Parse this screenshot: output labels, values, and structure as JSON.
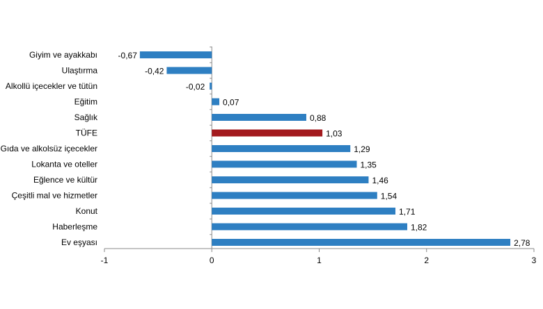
{
  "chart_data": {
    "type": "bar",
    "orientation": "horizontal",
    "categories": [
      "Giyim ve ayakkabı",
      "Ulaştırma",
      "Alkollü içecekler ve tütün",
      "Eğitim",
      "Sağlık",
      "TÜFE",
      "Gıda ve alkolsüz içecekler",
      "Lokanta ve oteller",
      "Eğlence ve kültür",
      "Çeşitli mal ve hizmetler",
      "Konut",
      "Haberleşme",
      "Ev eşyası"
    ],
    "values": [
      -0.67,
      -0.42,
      -0.02,
      0.07,
      0.88,
      1.03,
      1.29,
      1.35,
      1.46,
      1.54,
      1.71,
      1.82,
      2.78
    ],
    "value_labels": [
      "-0,67",
      "-0,42",
      "-0,02",
      "0,07",
      "0,88",
      "1,03",
      "1,29",
      "1,35",
      "1,46",
      "1,54",
      "1,71",
      "1,82",
      "2,78"
    ],
    "xlim": [
      -1,
      3
    ],
    "xticks": [
      -1,
      0,
      1,
      2,
      3
    ],
    "xtick_labels": [
      "-1",
      "0",
      "1",
      "2",
      "3"
    ],
    "colors": {
      "default": "#2E7FC2",
      "highlight": "#A31A1E",
      "axis": "#888888"
    },
    "highlight_category": "TÜFE",
    "grid": false,
    "legend": false,
    "title": "",
    "xlabel": "",
    "ylabel": ""
  }
}
